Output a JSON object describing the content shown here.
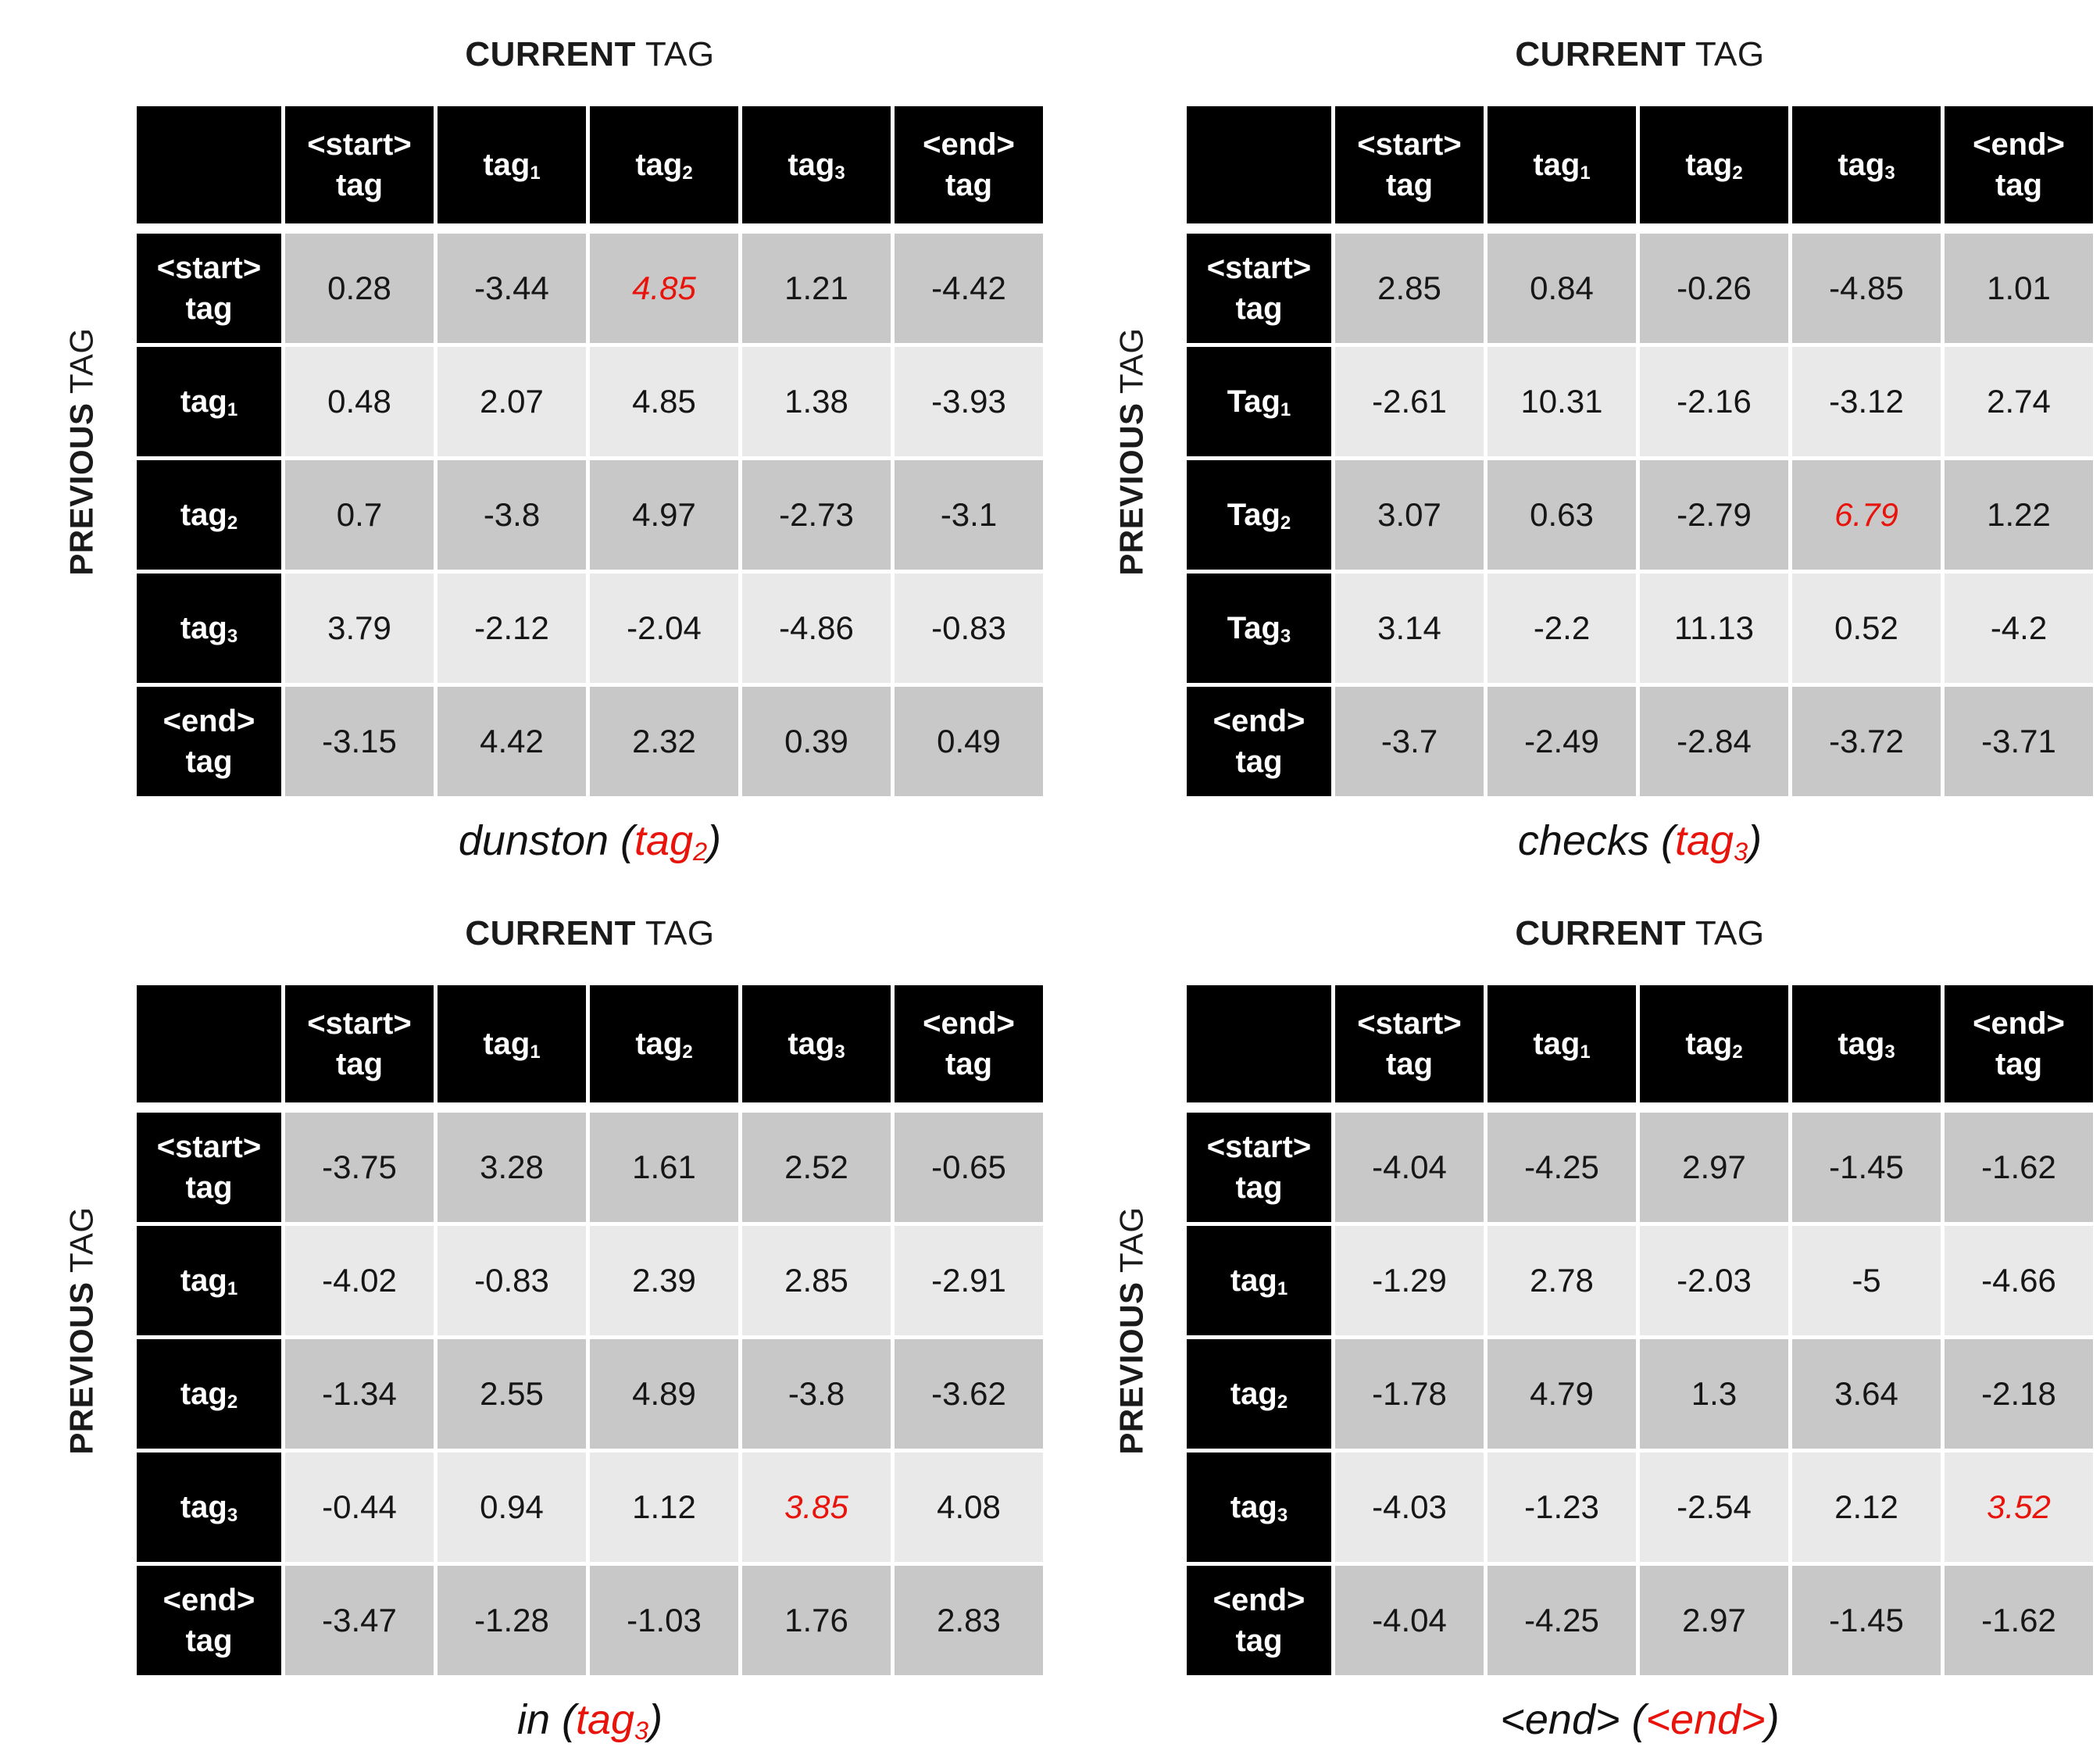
{
  "colors": {
    "accent_red": "#e8130a",
    "header_cell_bg": "#000000",
    "header_cell_text": "#ffffff",
    "row_dark_bg": "#c8c8c8",
    "row_light_bg": "#e9e9e9",
    "value_text": "#161616",
    "page_bg": "#ffffff"
  },
  "labels": {
    "title_strong": "CURRENT",
    "title_light": " TAG",
    "side_strong": "PREVIOUS",
    "side_light": " TAG"
  },
  "chart_data": {
    "type": "table",
    "description": "Four tag-transition score matrices; rows are previous tag, columns are current tag; one cell per matrix highlighted in red italic",
    "col_headers": [
      {
        "line1": "<start>",
        "line2": "tag"
      },
      {
        "text": "tag",
        "sub": "1"
      },
      {
        "text": "tag",
        "sub": "2"
      },
      {
        "text": "tag",
        "sub": "3"
      },
      {
        "line1": "<end>",
        "line2": "tag"
      }
    ],
    "tables": [
      {
        "row_headers": [
          {
            "line1": "<start>",
            "line2": "tag"
          },
          {
            "text": "tag",
            "sub": "1"
          },
          {
            "text": "tag",
            "sub": "2"
          },
          {
            "text": "tag",
            "sub": "3"
          },
          {
            "line1": "<end>",
            "line2": "tag"
          }
        ],
        "rows": [
          [
            "0.28",
            "-3.44",
            "4.85",
            "1.21",
            "-4.42"
          ],
          [
            "0.48",
            "2.07",
            "4.85",
            "1.38",
            "-3.93"
          ],
          [
            "0.7",
            "-3.8",
            "4.97",
            "-2.73",
            "-3.1"
          ],
          [
            "3.79",
            "-2.12",
            "-2.04",
            "-4.86",
            "-0.83"
          ],
          [
            "-3.15",
            "4.42",
            "2.32",
            "0.39",
            "0.49"
          ]
        ],
        "highlight": {
          "row": 0,
          "col": 2,
          "value": "4.85"
        },
        "caption": {
          "prefix": "dunston (",
          "red_text": "tag",
          "red_sub": "2",
          "suffix": ")"
        }
      },
      {
        "row_headers": [
          {
            "line1": "<start>",
            "line2": "tag"
          },
          {
            "text": "Tag",
            "sub": "1"
          },
          {
            "text": "Tag",
            "sub": "2"
          },
          {
            "text": "Tag",
            "sub": "3"
          },
          {
            "line1": "<end>",
            "line2": "tag"
          }
        ],
        "rows": [
          [
            "2.85",
            "0.84",
            "-0.26",
            "-4.85",
            "1.01"
          ],
          [
            "-2.61",
            "10.31",
            "-2.16",
            "-3.12",
            "2.74"
          ],
          [
            "3.07",
            "0.63",
            "-2.79",
            "6.79",
            "1.22"
          ],
          [
            "3.14",
            "-2.2",
            "11.13",
            "0.52",
            "-4.2"
          ],
          [
            "-3.7",
            "-2.49",
            "-2.84",
            "-3.72",
            "-3.71"
          ]
        ],
        "highlight": {
          "row": 2,
          "col": 3,
          "value": "6.79"
        },
        "caption": {
          "prefix": "checks (",
          "red_text": "tag",
          "red_sub": "3",
          "suffix": ")"
        }
      },
      {
        "row_headers": [
          {
            "line1": "<start>",
            "line2": "tag"
          },
          {
            "text": "tag",
            "sub": "1"
          },
          {
            "text": "tag",
            "sub": "2"
          },
          {
            "text": "tag",
            "sub": "3"
          },
          {
            "line1": "<end>",
            "line2": "tag"
          }
        ],
        "rows": [
          [
            "-3.75",
            "3.28",
            "1.61",
            "2.52",
            "-0.65"
          ],
          [
            "-4.02",
            "-0.83",
            "2.39",
            "2.85",
            "-2.91"
          ],
          [
            "-1.34",
            "2.55",
            "4.89",
            "-3.8",
            "-3.62"
          ],
          [
            "-0.44",
            "0.94",
            "1.12",
            "3.85",
            "4.08"
          ],
          [
            "-3.47",
            "-1.28",
            "-1.03",
            "1.76",
            "2.83"
          ]
        ],
        "highlight": {
          "row": 3,
          "col": 3,
          "value": "3.85"
        },
        "caption": {
          "prefix": "in (",
          "red_text": "tag",
          "red_sub": "3",
          "suffix": ")"
        }
      },
      {
        "row_headers": [
          {
            "line1": "<start>",
            "line2": "tag"
          },
          {
            "text": "tag",
            "sub": "1"
          },
          {
            "text": "tag",
            "sub": "2"
          },
          {
            "text": "tag",
            "sub": "3"
          },
          {
            "line1": "<end>",
            "line2": "tag"
          }
        ],
        "rows": [
          [
            "-4.04",
            "-4.25",
            "2.97",
            "-1.45",
            "-1.62"
          ],
          [
            "-1.29",
            "2.78",
            "-2.03",
            "-5",
            "-4.66"
          ],
          [
            "-1.78",
            "4.79",
            "1.3",
            "3.64",
            "-2.18"
          ],
          [
            "-4.03",
            "-1.23",
            "-2.54",
            "2.12",
            "3.52"
          ],
          [
            "-4.04",
            "-4.25",
            "2.97",
            "-1.45",
            "-1.62"
          ]
        ],
        "highlight": {
          "row": 3,
          "col": 4,
          "value": "3.52"
        },
        "caption": {
          "prefix": "<end> (",
          "red_text": "<end>",
          "red_sub": "",
          "suffix": ")"
        }
      }
    ]
  }
}
